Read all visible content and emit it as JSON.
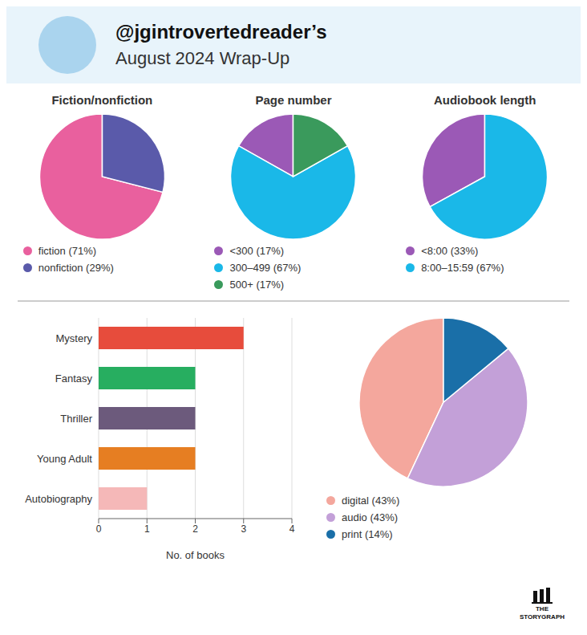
{
  "title": "@jgintrovertedreader’s",
  "subtitle": "August 2024 Wrap-Up",
  "annotations": [
    "THE",
    "STORYGRAPH"
  ],
  "chart_data": [
    {
      "type": "pie",
      "title": "Fiction/nonfiction",
      "categories": [
        "fiction (71%)",
        "nonfiction (29%)"
      ],
      "values": [
        71,
        29
      ],
      "colors": [
        "#e9609e",
        "#5a5aaa"
      ],
      "legend": "bottom"
    },
    {
      "type": "pie",
      "title": "Page number",
      "categories": [
        "<300 (17%)",
        "300–499 (67%)",
        "500+ (17%)"
      ],
      "values": [
        17,
        67,
        17
      ],
      "colors": [
        "#9b59b6",
        "#1ab8e8",
        "#3a9a5c"
      ],
      "legend": "bottom"
    },
    {
      "type": "pie",
      "title": "Audiobook length",
      "categories": [
        "<8:00 (33%)",
        "8:00–15:59 (67%)"
      ],
      "values": [
        33,
        67
      ],
      "colors": [
        "#9b59b6",
        "#1ab8e8"
      ],
      "legend": "bottom"
    },
    {
      "type": "bar",
      "orientation": "horizontal",
      "categories": [
        "Mystery",
        "Fantasy",
        "Thriller",
        "Young Adult",
        "Autobiography"
      ],
      "values": [
        3,
        2,
        2,
        2,
        1
      ],
      "colors": [
        "#e74c3c",
        "#27ae60",
        "#6c5a7c",
        "#e67e22",
        "#f5b8b8"
      ],
      "xlabel": "No. of books",
      "xlim": [
        0,
        4
      ],
      "xticks": [
        0,
        1,
        2,
        3,
        4
      ],
      "grid": true
    },
    {
      "type": "pie",
      "categories": [
        "digital (43%)",
        "audio (43%)",
        "print (14%)"
      ],
      "values": [
        43,
        43,
        14
      ],
      "colors": [
        "#f4a79d",
        "#c3a0d8",
        "#1a6fa8"
      ],
      "legend": "bottom"
    }
  ]
}
